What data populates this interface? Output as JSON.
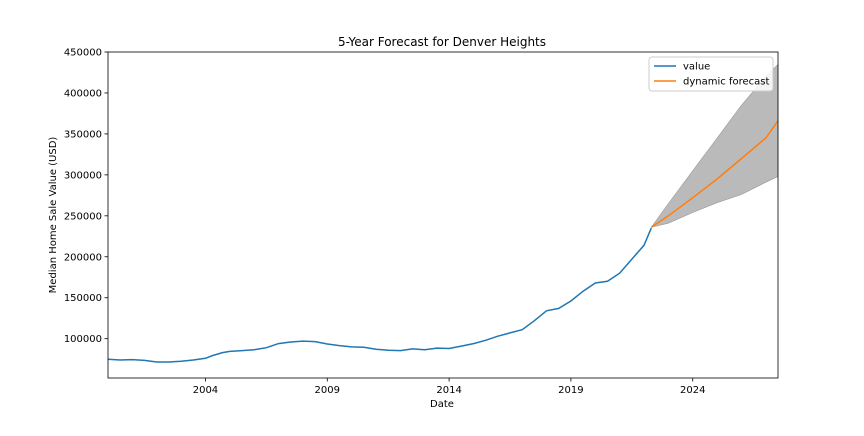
{
  "chart_data": {
    "type": "line",
    "title": "5-Year Forecast for Denver Heights",
    "xlabel": "Date",
    "ylabel": "Median Home Sale Value (USD)",
    "xlim": [
      2000.0,
      2027.5
    ],
    "ylim": [
      52000,
      450000
    ],
    "x_ticks": [
      2004,
      2009,
      2014,
      2019,
      2024
    ],
    "x_tick_labels": [
      "2004",
      "2009",
      "2014",
      "2019",
      "2024"
    ],
    "y_ticks": [
      100000,
      150000,
      200000,
      250000,
      300000,
      350000,
      400000,
      450000
    ],
    "y_tick_labels": [
      "100000",
      "150000",
      "200000",
      "250000",
      "300000",
      "350000",
      "400000",
      "450000"
    ],
    "grid": false,
    "legend_position": "top-right",
    "colors": {
      "value": "#1f77b4",
      "forecast": "#ff7f0e",
      "band": "#a9a9a9",
      "axes": "#000000"
    },
    "series": [
      {
        "name": "value",
        "x": [
          2000.0,
          2000.5,
          2001.0,
          2001.5,
          2002.0,
          2002.5,
          2003.0,
          2003.5,
          2004.0,
          2004.3,
          2004.7,
          2005.0,
          2005.5,
          2006.0,
          2006.5,
          2007.0,
          2007.5,
          2008.0,
          2008.5,
          2009.0,
          2009.5,
          2010.0,
          2010.5,
          2011.0,
          2011.5,
          2012.0,
          2012.5,
          2013.0,
          2013.5,
          2014.0,
          2014.5,
          2015.0,
          2015.5,
          2016.0,
          2016.5,
          2017.0,
          2017.5,
          2018.0,
          2018.5,
          2019.0,
          2019.5,
          2020.0,
          2020.5,
          2021.0,
          2021.5,
          2022.0,
          2022.3
        ],
        "values": [
          75000,
          74000,
          74500,
          73500,
          71500,
          71500,
          72500,
          74000,
          76000,
          79500,
          83000,
          84500,
          85500,
          86500,
          89000,
          94000,
          96000,
          97000,
          96500,
          93500,
          91500,
          90000,
          89500,
          87000,
          86000,
          85500,
          87500,
          86500,
          88500,
          88000,
          91000,
          94000,
          98000,
          103000,
          107000,
          111000,
          122000,
          134000,
          137000,
          146000,
          158000,
          168000,
          170000,
          180000,
          197000,
          214000,
          235000
        ]
      },
      {
        "name": "dynamic forecast",
        "x": [
          2022.3,
          2023.0,
          2024.0,
          2025.0,
          2026.0,
          2027.0,
          2027.5
        ],
        "values": [
          236000,
          250000,
          272000,
          295000,
          320000,
          345000,
          366000
        ]
      }
    ],
    "confidence_band": {
      "x": [
        2022.3,
        2023.0,
        2024.0,
        2025.0,
        2026.0,
        2027.0,
        2027.5
      ],
      "lower": [
        236000,
        241000,
        254000,
        266000,
        276000,
        291000,
        298000
      ],
      "upper": [
        236000,
        265000,
        305000,
        345000,
        385000,
        420000,
        435000
      ]
    },
    "legend": [
      "value",
      "dynamic forecast"
    ]
  }
}
